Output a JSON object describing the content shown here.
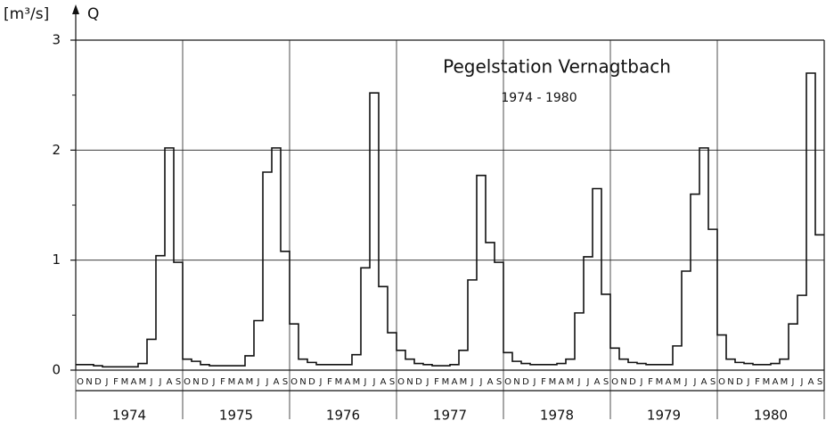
{
  "chart_data": {
    "type": "step",
    "title": "Pegelstation Vernagtbach",
    "subtitle": "1974 - 1980",
    "y_unit": "[m³/s]",
    "y_label": "Q",
    "categories": [
      "O",
      "N",
      "D",
      "J",
      "F",
      "M",
      "A",
      "M",
      "J",
      "J",
      "A",
      "S",
      "O",
      "N",
      "D",
      "J",
      "F",
      "M",
      "A",
      "M",
      "J",
      "J",
      "A",
      "S",
      "O",
      "N",
      "D",
      "J",
      "F",
      "M",
      "A",
      "M",
      "J",
      "J",
      "A",
      "S",
      "O",
      "N",
      "D",
      "J",
      "F",
      "M",
      "A",
      "M",
      "J",
      "J",
      "A",
      "S",
      "O",
      "N",
      "D",
      "J",
      "F",
      "M",
      "A",
      "M",
      "J",
      "J",
      "A",
      "S",
      "O",
      "N",
      "D",
      "J",
      "F",
      "M",
      "A",
      "M",
      "J",
      "J",
      "A",
      "S",
      "O",
      "N",
      "D",
      "J",
      "F",
      "M",
      "A",
      "M",
      "J",
      "J",
      "A",
      "S"
    ],
    "years": [
      "1974",
      "1975",
      "1976",
      "1977",
      "1978",
      "1979",
      "1980"
    ],
    "series": [
      {
        "color": "#111111",
        "values": [
          0.05,
          0.05,
          0.04,
          0.03,
          0.03,
          0.03,
          0.03,
          0.06,
          0.28,
          1.04,
          2.02,
          0.98,
          0.1,
          0.08,
          0.05,
          0.04,
          0.04,
          0.04,
          0.04,
          0.13,
          0.45,
          1.8,
          2.02,
          1.08,
          0.42,
          0.1,
          0.07,
          0.05,
          0.05,
          0.05,
          0.05,
          0.14,
          0.93,
          2.52,
          0.76,
          0.34,
          0.18,
          0.1,
          0.06,
          0.05,
          0.04,
          0.04,
          0.05,
          0.18,
          0.82,
          1.77,
          1.16,
          0.98,
          0.16,
          0.08,
          0.06,
          0.05,
          0.05,
          0.05,
          0.06,
          0.1,
          0.52,
          1.03,
          1.65,
          0.69,
          0.2,
          0.1,
          0.07,
          0.06,
          0.05,
          0.05,
          0.05,
          0.22,
          0.9,
          1.6,
          2.02,
          1.28,
          0.32,
          0.1,
          0.07,
          0.06,
          0.05,
          0.05,
          0.06,
          0.1,
          0.42,
          0.68,
          2.7,
          1.23
        ]
      }
    ],
    "ylim": [
      0,
      3
    ],
    "yticks": [
      0,
      1,
      2,
      3
    ],
    "yminorticks": [
      0.5,
      1.5,
      2.5
    ],
    "grid": true
  }
}
